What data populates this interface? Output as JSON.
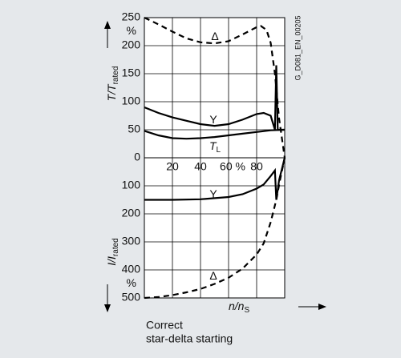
{
  "chart_data": [
    {
      "type": "line",
      "panel": "top",
      "ylabel": {
        "main": "T/T",
        "sub": "rated"
      },
      "yunit": "%",
      "xlim": [
        0,
        100
      ],
      "xticks": [
        20,
        40,
        {
          "value": 60,
          "label": "60 %"
        },
        80
      ],
      "ylim": [
        0,
        250
      ],
      "yticks": [
        0,
        50,
        100,
        150,
        200,
        250
      ],
      "grid": true,
      "series": [
        {
          "name": "Δ",
          "color": "#000000",
          "dash": true,
          "x": [
            0,
            10,
            20,
            30,
            40,
            50,
            60,
            70,
            80,
            83,
            87,
            90,
            93,
            96,
            100
          ],
          "values": [
            250,
            238,
            225,
            213,
            206,
            204,
            208,
            220,
            233,
            235,
            228,
            205,
            150,
            70,
            0
          ]
        },
        {
          "name": "Y",
          "color": "#000000",
          "dash": false,
          "x": [
            0,
            10,
            20,
            30,
            40,
            50,
            60,
            70,
            80,
            85,
            90,
            93,
            94,
            95,
            100
          ],
          "values": [
            90,
            80,
            72,
            66,
            60,
            57,
            60,
            68,
            78,
            80,
            75,
            50,
            165,
            50,
            50
          ]
        },
        {
          "name": "T",
          "sub": "L",
          "color": "#000000",
          "dash": false,
          "x": [
            0,
            10,
            20,
            30,
            40,
            50,
            60,
            70,
            80,
            90,
            100
          ],
          "values": [
            48,
            40,
            35,
            34,
            35,
            37,
            40,
            43,
            46,
            49,
            50
          ]
        }
      ]
    },
    {
      "type": "line",
      "panel": "bottom",
      "ylabel": {
        "main": "I/I",
        "sub": "rated"
      },
      "yunit": "%",
      "xlabel": {
        "main": "n/n",
        "sub": "S"
      },
      "xlim": [
        0,
        100
      ],
      "ylim": [
        500,
        0
      ],
      "yticks": [
        100,
        200,
        300,
        400,
        500
      ],
      "grid": true,
      "series": [
        {
          "name": "Y",
          "color": "#000000",
          "dash": false,
          "x": [
            0,
            20,
            40,
            60,
            70,
            80,
            85,
            90,
            93,
            94,
            96,
            100
          ],
          "values": [
            150,
            150,
            148,
            140,
            130,
            110,
            95,
            65,
            45,
            150,
            80,
            0
          ]
        },
        {
          "name": "Δ",
          "color": "#000000",
          "dash": true,
          "x": [
            0,
            10,
            20,
            30,
            40,
            50,
            60,
            70,
            80,
            85,
            90,
            94,
            97,
            100
          ],
          "values": [
            500,
            497,
            490,
            480,
            468,
            450,
            428,
            395,
            345,
            305,
            230,
            150,
            70,
            0
          ]
        }
      ]
    }
  ],
  "code": "G_D081_EN_00205",
  "caption": [
    "Correct",
    "star-delta starting"
  ]
}
